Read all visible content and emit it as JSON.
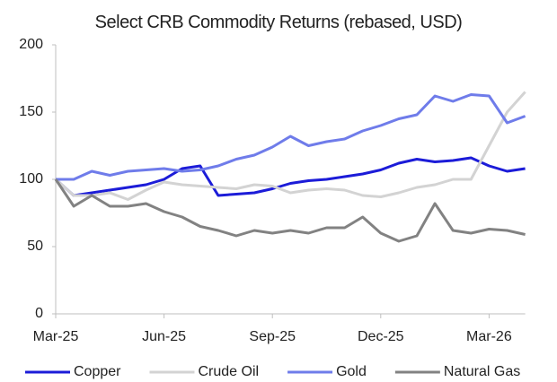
{
  "chart_data": {
    "type": "line",
    "title": "Select CRB Commodity Returns (rebased, USD)",
    "categories": [
      "Mar-25",
      null,
      null,
      null,
      null,
      null,
      "Jun-25",
      null,
      null,
      null,
      null,
      null,
      "Sep-25",
      null,
      null,
      null,
      null,
      null,
      "Dec-25",
      null,
      null,
      null,
      null,
      null,
      "Mar-26",
      null,
      null
    ],
    "series": [
      {
        "name": "Copper",
        "color": "#1c1cd8",
        "values": [
          100,
          88,
          90,
          92,
          94,
          96,
          100,
          108,
          110,
          88,
          89,
          90,
          93,
          97,
          99,
          100,
          102,
          104,
          107,
          112,
          115,
          113,
          114,
          116,
          110,
          106,
          108
        ]
      },
      {
        "name": "Crude Oil",
        "color": "#d3d3d3",
        "values": [
          100,
          88,
          88,
          90,
          85,
          92,
          98,
          96,
          95,
          94,
          93,
          96,
          95,
          90,
          92,
          93,
          92,
          88,
          87,
          90,
          94,
          96,
          100,
          100,
          125,
          150,
          165
        ]
      },
      {
        "name": "Gold",
        "color": "#6f7cea",
        "values": [
          100,
          100,
          106,
          103,
          106,
          107,
          108,
          106,
          107,
          110,
          115,
          118,
          124,
          132,
          125,
          128,
          130,
          136,
          140,
          145,
          148,
          162,
          158,
          163,
          162,
          142,
          147
        ]
      },
      {
        "name": "Natural Gas",
        "color": "#828282",
        "values": [
          100,
          80,
          88,
          80,
          80,
          82,
          76,
          72,
          65,
          62,
          58,
          62,
          60,
          62,
          60,
          64,
          64,
          72,
          60,
          54,
          58,
          82,
          62,
          60,
          63,
          62,
          59
        ]
      }
    ],
    "ylim": [
      0,
      200
    ],
    "yticks": [
      0,
      50,
      100,
      150,
      200
    ]
  }
}
